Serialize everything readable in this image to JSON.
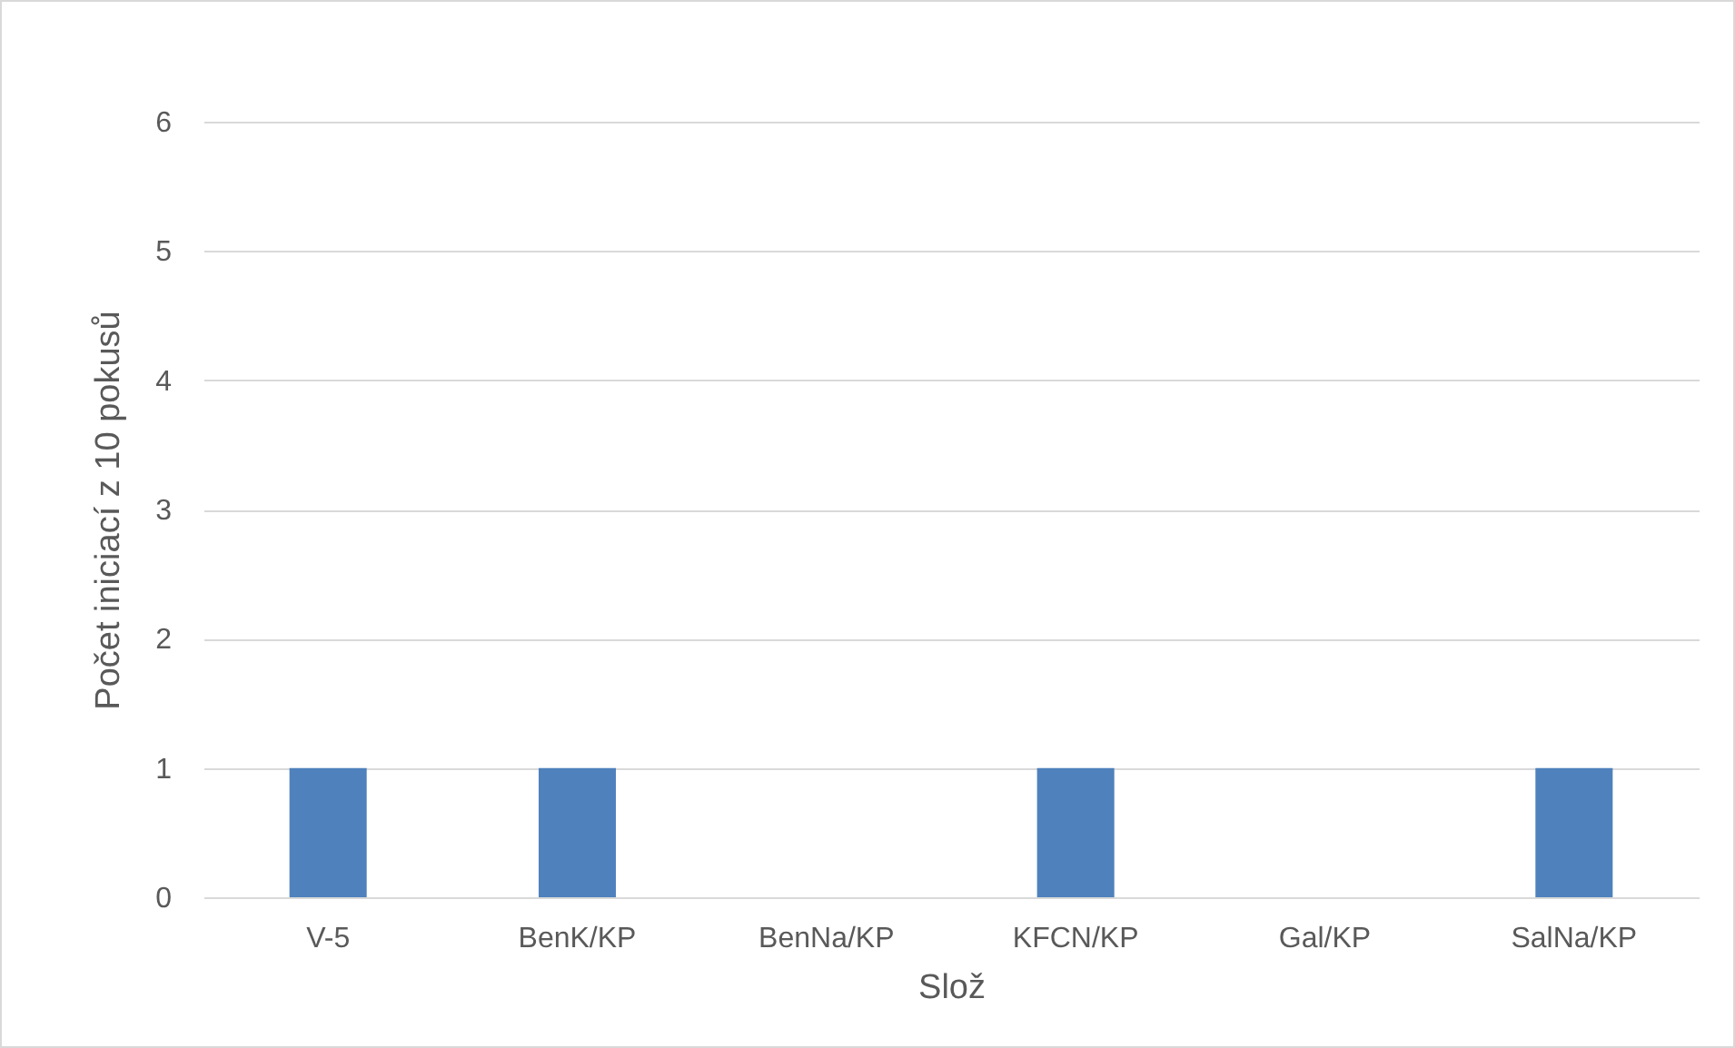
{
  "chart_data": {
    "type": "bar",
    "xlabel": "Slož",
    "ylabel": "Počet iniciací z 10 pokusů",
    "categories": [
      "V-5",
      "BenK/KP",
      "BenNa/KP",
      "KFCN/KP",
      "Gal/KP",
      "SalNa/KP"
    ],
    "values": [
      1,
      1,
      0,
      1,
      0,
      1
    ],
    "color": "#4f81bd",
    "ylim": [
      0,
      6
    ],
    "yticks": [
      0,
      1,
      2,
      3,
      4,
      5,
      6
    ],
    "grid": "y"
  }
}
